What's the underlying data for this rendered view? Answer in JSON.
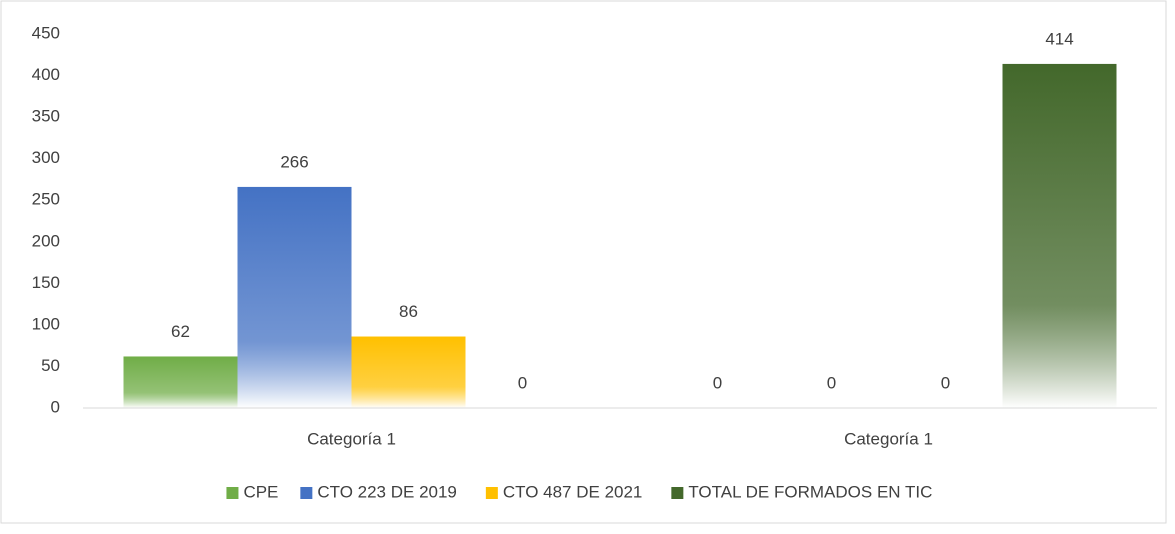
{
  "chart_data": {
    "type": "bar",
    "categories": [
      "Categoría 1",
      "Categoría 1"
    ],
    "series": [
      {
        "name": "CPE",
        "color": "#70ad47",
        "values": [
          62,
          0
        ]
      },
      {
        "name": "CTO 223 DE 2019",
        "color": "#4472c4",
        "values": [
          266,
          0
        ]
      },
      {
        "name": "CTO 487 DE 2021",
        "color": "#ffc000",
        "values": [
          86,
          0
        ]
      },
      {
        "name": "TOTAL DE FORMADOS EN TIC",
        "color": "#43682b",
        "values": [
          0,
          414
        ]
      }
    ],
    "ylim": [
      0,
      450
    ],
    "yticks": [
      0,
      50,
      100,
      150,
      200,
      250,
      300,
      350,
      400,
      450
    ],
    "grid": false,
    "legend": "bottom"
  }
}
